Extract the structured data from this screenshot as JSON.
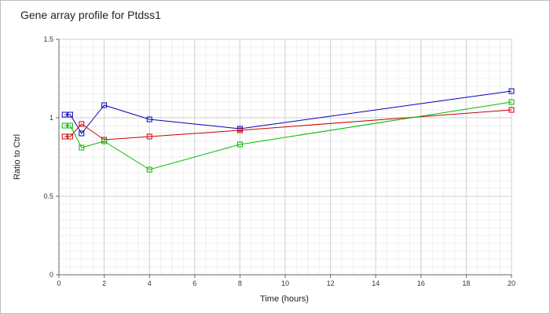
{
  "chart_data": {
    "type": "line",
    "title": "Gene array profile for Ptdss1",
    "xlabel": "Time (hours)",
    "ylabel": "Ratio to Ctrl",
    "xlim": [
      0,
      20
    ],
    "ylim": [
      0,
      1.5
    ],
    "x_ticks": [
      0,
      2,
      4,
      6,
      8,
      10,
      12,
      14,
      16,
      18,
      20
    ],
    "y_ticks": [
      0,
      0.5,
      1,
      1.5
    ],
    "y_tick_labels": [
      "0",
      "0.5",
      "1",
      "1.5"
    ],
    "x_minor_step": 0.5,
    "y_minor_step": 0.05,
    "grid": true,
    "legend": "none",
    "marker": "square",
    "series": [
      {
        "color": "#0000bb",
        "x": [
          0.25,
          0.5,
          1,
          2,
          4,
          8,
          20
        ],
        "y": [
          1.02,
          1.02,
          0.9,
          1.08,
          0.99,
          0.93,
          1.17
        ]
      },
      {
        "color": "#cc0000",
        "x": [
          0.25,
          0.5,
          1,
          2,
          4,
          8,
          20
        ],
        "y": [
          0.88,
          0.88,
          0.96,
          0.86,
          0.88,
          0.92,
          1.05
        ]
      },
      {
        "color": "#00bb00",
        "x": [
          0.25,
          0.5,
          1,
          2,
          4,
          8,
          20
        ],
        "y": [
          0.95,
          0.95,
          0.81,
          0.85,
          0.67,
          0.83,
          1.1
        ]
      }
    ]
  }
}
